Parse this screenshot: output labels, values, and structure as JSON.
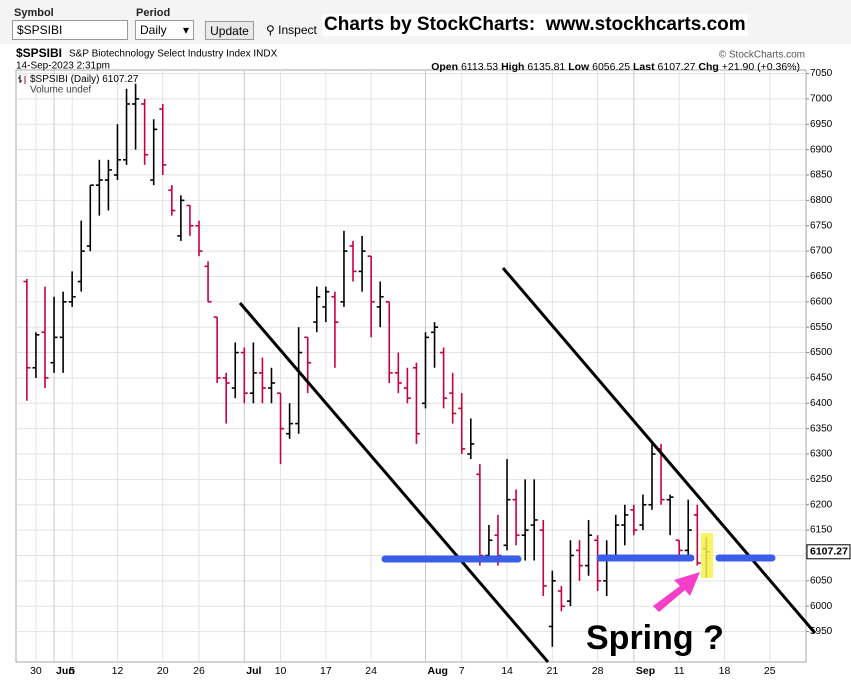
{
  "toolbar": {
    "symbol_label": "Symbol",
    "symbol": "$SPSIBI",
    "period_label": "Period",
    "period": "Daily",
    "update": "Update",
    "inspect": "Inspect",
    "banner": "Charts by StockCharts:  www.stockhcarts.com"
  },
  "chart_data": {
    "type": "ohlc",
    "title": "$SPSIBI",
    "subtitle": "S&P Biotechnology Select Industry Index  INDX",
    "copyright": "© StockCharts.com",
    "date": "14-Sep-2023 2:31pm",
    "quote_labels": [
      "Open",
      "High",
      "Low",
      "Last",
      "Chg"
    ],
    "change": "+21.90 (+0.36%)",
    "volume_label": "Volume undef",
    "annotation": "Spring ?",
    "series": [
      {
        "name": "$SPSIBI (Daily)",
        "up_color": "#000000",
        "down_color": "#c8003c",
        "open": [
          6640,
          6470,
          6540,
          6480,
          6530,
          6600,
          6640,
          6710,
          6830,
          6840,
          6850,
          6880,
          6990,
          6990,
          6840,
          6980,
          6820,
          6730,
          6790,
          6750,
          6670,
          6570,
          6450,
          6430,
          6500,
          6420,
          6460,
          6430,
          6420,
          6340,
          6360,
          6530,
          6560,
          6590,
          6610,
          6600,
          6710,
          6660,
          6690,
          6590,
          6600,
          6460,
          6430,
          6470,
          6400,
          6540,
          6500,
          6420,
          6390,
          6300,
          6260,
          6100,
          6140,
          6120,
          6210,
          6140,
          6160,
          6150,
          5960,
          6030,
          6010,
          6110,
          6080,
          6130,
          6050,
          6100,
          6160,
          6190,
          6160,
          6200,
          6310,
          6210,
          6130,
          6110,
          6180,
          6113.53
        ],
        "high": [
          6645,
          6540,
          6630,
          6610,
          6620,
          6660,
          6760,
          6830,
          6880,
          6880,
          6950,
          7020,
          7030,
          7000,
          6960,
          6990,
          6830,
          6810,
          6790,
          6760,
          6680,
          6570,
          6460,
          6520,
          6510,
          6520,
          6490,
          6470,
          6420,
          6400,
          6550,
          6530,
          6630,
          6630,
          6620,
          6740,
          6720,
          6730,
          6690,
          6640,
          6600,
          6500,
          6470,
          6480,
          6540,
          6560,
          6510,
          6460,
          6420,
          6370,
          6280,
          6160,
          6180,
          6290,
          6230,
          6250,
          6250,
          6170,
          6070,
          6040,
          6130,
          6130,
          6170,
          6140,
          6130,
          6180,
          6200,
          6200,
          6220,
          6320,
          6320,
          6220,
          6130,
          6210,
          6200,
          6135.81
        ],
        "low": [
          6405,
          6450,
          6430,
          6460,
          6460,
          6590,
          6620,
          6700,
          6770,
          6780,
          6840,
          6870,
          6900,
          6870,
          6830,
          6850,
          6770,
          6720,
          6730,
          6690,
          6600,
          6440,
          6360,
          6410,
          6400,
          6400,
          6400,
          6400,
          6280,
          6330,
          6340,
          6420,
          6540,
          6560,
          6470,
          6590,
          6640,
          6620,
          6530,
          6550,
          6440,
          6420,
          6400,
          6320,
          6390,
          6470,
          6390,
          6360,
          6300,
          6290,
          6080,
          6090,
          6080,
          6110,
          6120,
          6090,
          6090,
          6020,
          5920,
          5990,
          6000,
          6050,
          6060,
          6030,
          6020,
          6090,
          6120,
          6140,
          6150,
          6190,
          6200,
          6140,
          6100,
          6090,
          6080,
          6056.25
        ],
        "close": [
          6470,
          6535,
          6450,
          6530,
          6600,
          6610,
          6700,
          6830,
          6840,
          6860,
          6880,
          6990,
          7000,
          6890,
          6940,
          6870,
          6780,
          6800,
          6750,
          6700,
          6600,
          6450,
          6440,
          6500,
          6420,
          6460,
          6430,
          6440,
          6350,
          6360,
          6500,
          6480,
          6610,
          6620,
          6560,
          6700,
          6660,
          6700,
          6600,
          6610,
          6460,
          6440,
          6410,
          6340,
          6530,
          6550,
          6410,
          6380,
          6310,
          6320,
          6100,
          6130,
          6100,
          6210,
          6140,
          6150,
          6170,
          6040,
          6050,
          6000,
          6100,
          6080,
          6140,
          6050,
          6100,
          6160,
          6180,
          6150,
          6200,
          6300,
          6210,
          6215,
          6110,
          6150,
          6085,
          6107.27
        ]
      }
    ],
    "xlim": [
      -1.2,
      86
    ],
    "ylim": [
      5890,
      7057
    ],
    "xticks": [
      {
        "value": 1,
        "label": "30"
      },
      {
        "value": 3,
        "label": "Jun"
      },
      {
        "value": 5,
        "label": "5"
      },
      {
        "value": 10,
        "label": "12"
      },
      {
        "value": 15,
        "label": "20"
      },
      {
        "value": 19,
        "label": "26"
      },
      {
        "value": 24,
        "label": "Jul"
      },
      {
        "value": 28,
        "label": "10"
      },
      {
        "value": 33,
        "label": "17"
      },
      {
        "value": 38,
        "label": "24"
      },
      {
        "value": 44,
        "label": "Aug"
      },
      {
        "value": 48,
        "label": "7"
      },
      {
        "value": 53,
        "label": "14"
      },
      {
        "value": 58,
        "label": "21"
      },
      {
        "value": 63,
        "label": "28"
      },
      {
        "value": 67,
        "label": "Sep"
      },
      {
        "value": 72,
        "label": "11"
      },
      {
        "value": 77,
        "label": "18"
      },
      {
        "value": 82,
        "label": "25"
      }
    ],
    "yticks": [
      5950,
      6000,
      6050,
      6100,
      6150,
      6200,
      6250,
      6300,
      6350,
      6400,
      6450,
      6500,
      6550,
      6600,
      6650,
      6700,
      6750,
      6800,
      6850,
      6900,
      6950,
      7000,
      7050
    ],
    "grid": true
  }
}
